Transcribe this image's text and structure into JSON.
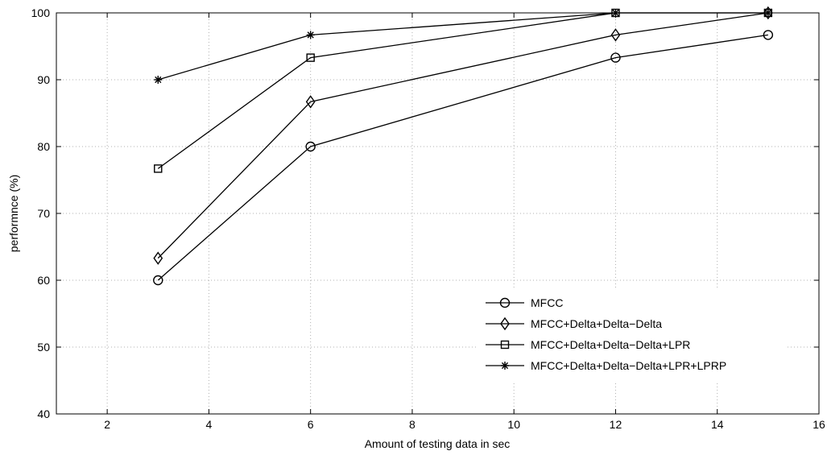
{
  "chart_data": {
    "type": "line",
    "title": "",
    "xlabel": "Amount of testing data in sec",
    "ylabel": "performnce (%)",
    "xlim": [
      1,
      16
    ],
    "ylim": [
      40,
      100
    ],
    "xticks": [
      2,
      4,
      6,
      8,
      10,
      12,
      14,
      16
    ],
    "yticks": [
      40,
      50,
      60,
      70,
      80,
      90,
      100
    ],
    "grid": true,
    "legend_position": "lower-right",
    "x": [
      3,
      6,
      12,
      15
    ],
    "series": [
      {
        "name": "MFCC",
        "marker": "circle",
        "values": [
          60.0,
          80.0,
          93.3,
          96.7
        ]
      },
      {
        "name": "MFCC+Delta+Delta−Delta",
        "marker": "diamond",
        "values": [
          63.3,
          86.7,
          96.7,
          100.0
        ]
      },
      {
        "name": "MFCC+Delta+Delta−Delta+LPR",
        "marker": "square",
        "values": [
          76.7,
          93.3,
          100.0,
          100.0
        ]
      },
      {
        "name": "MFCC+Delta+Delta−Delta+LPR+LPRP",
        "marker": "asterisk",
        "values": [
          90.0,
          96.7,
          100.0,
          100.0
        ]
      }
    ],
    "colors": {
      "line": "#000000",
      "grid": "#b0b0b0"
    }
  }
}
